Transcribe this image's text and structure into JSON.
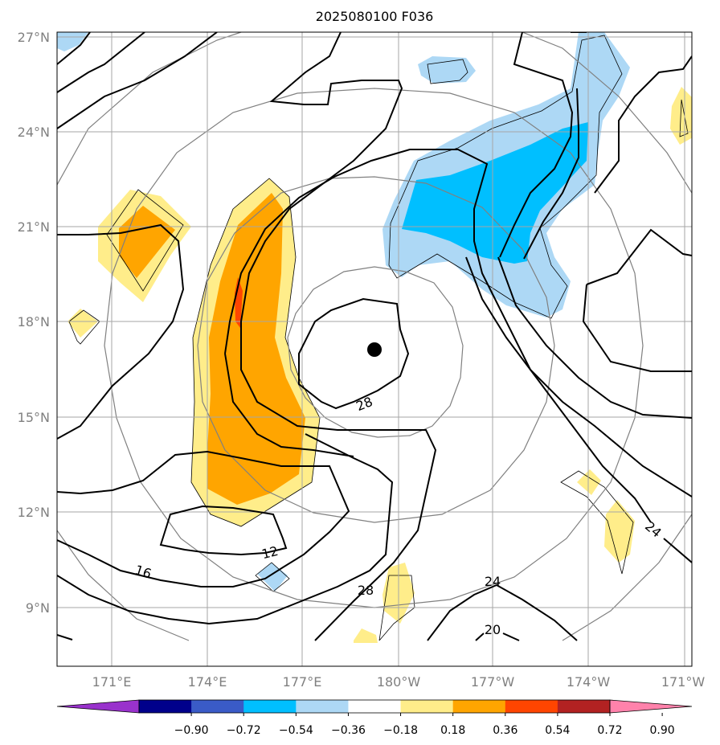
{
  "title": "2025080100 F036",
  "map": {
    "lat_labels": [
      "27°N",
      "24°N",
      "21°N",
      "18°N",
      "15°N",
      "12°N",
      "9°N"
    ],
    "lon_labels": [
      "171°E",
      "174°E",
      "177°E",
      "180°W",
      "177°W",
      "174°W",
      "171°W"
    ],
    "storm_center_icon": "filled-circle",
    "contour_labels": [
      "28",
      "12",
      "16",
      "28",
      "24",
      "20",
      "24"
    ]
  },
  "colorbar": {
    "ticks": [
      "−0.90",
      "−0.72",
      "−0.54",
      "−0.36",
      "−0.18",
      "0.18",
      "0.36",
      "0.54",
      "0.72",
      "0.90"
    ],
    "colors": [
      "#9932cc",
      "#00008b",
      "#3a5bc7",
      "#00bfff",
      "#add8f5",
      "#ffffff",
      "#ffed8a",
      "#ffa500",
      "#ff4500",
      "#b22222",
      "#ff82ab"
    ]
  }
}
